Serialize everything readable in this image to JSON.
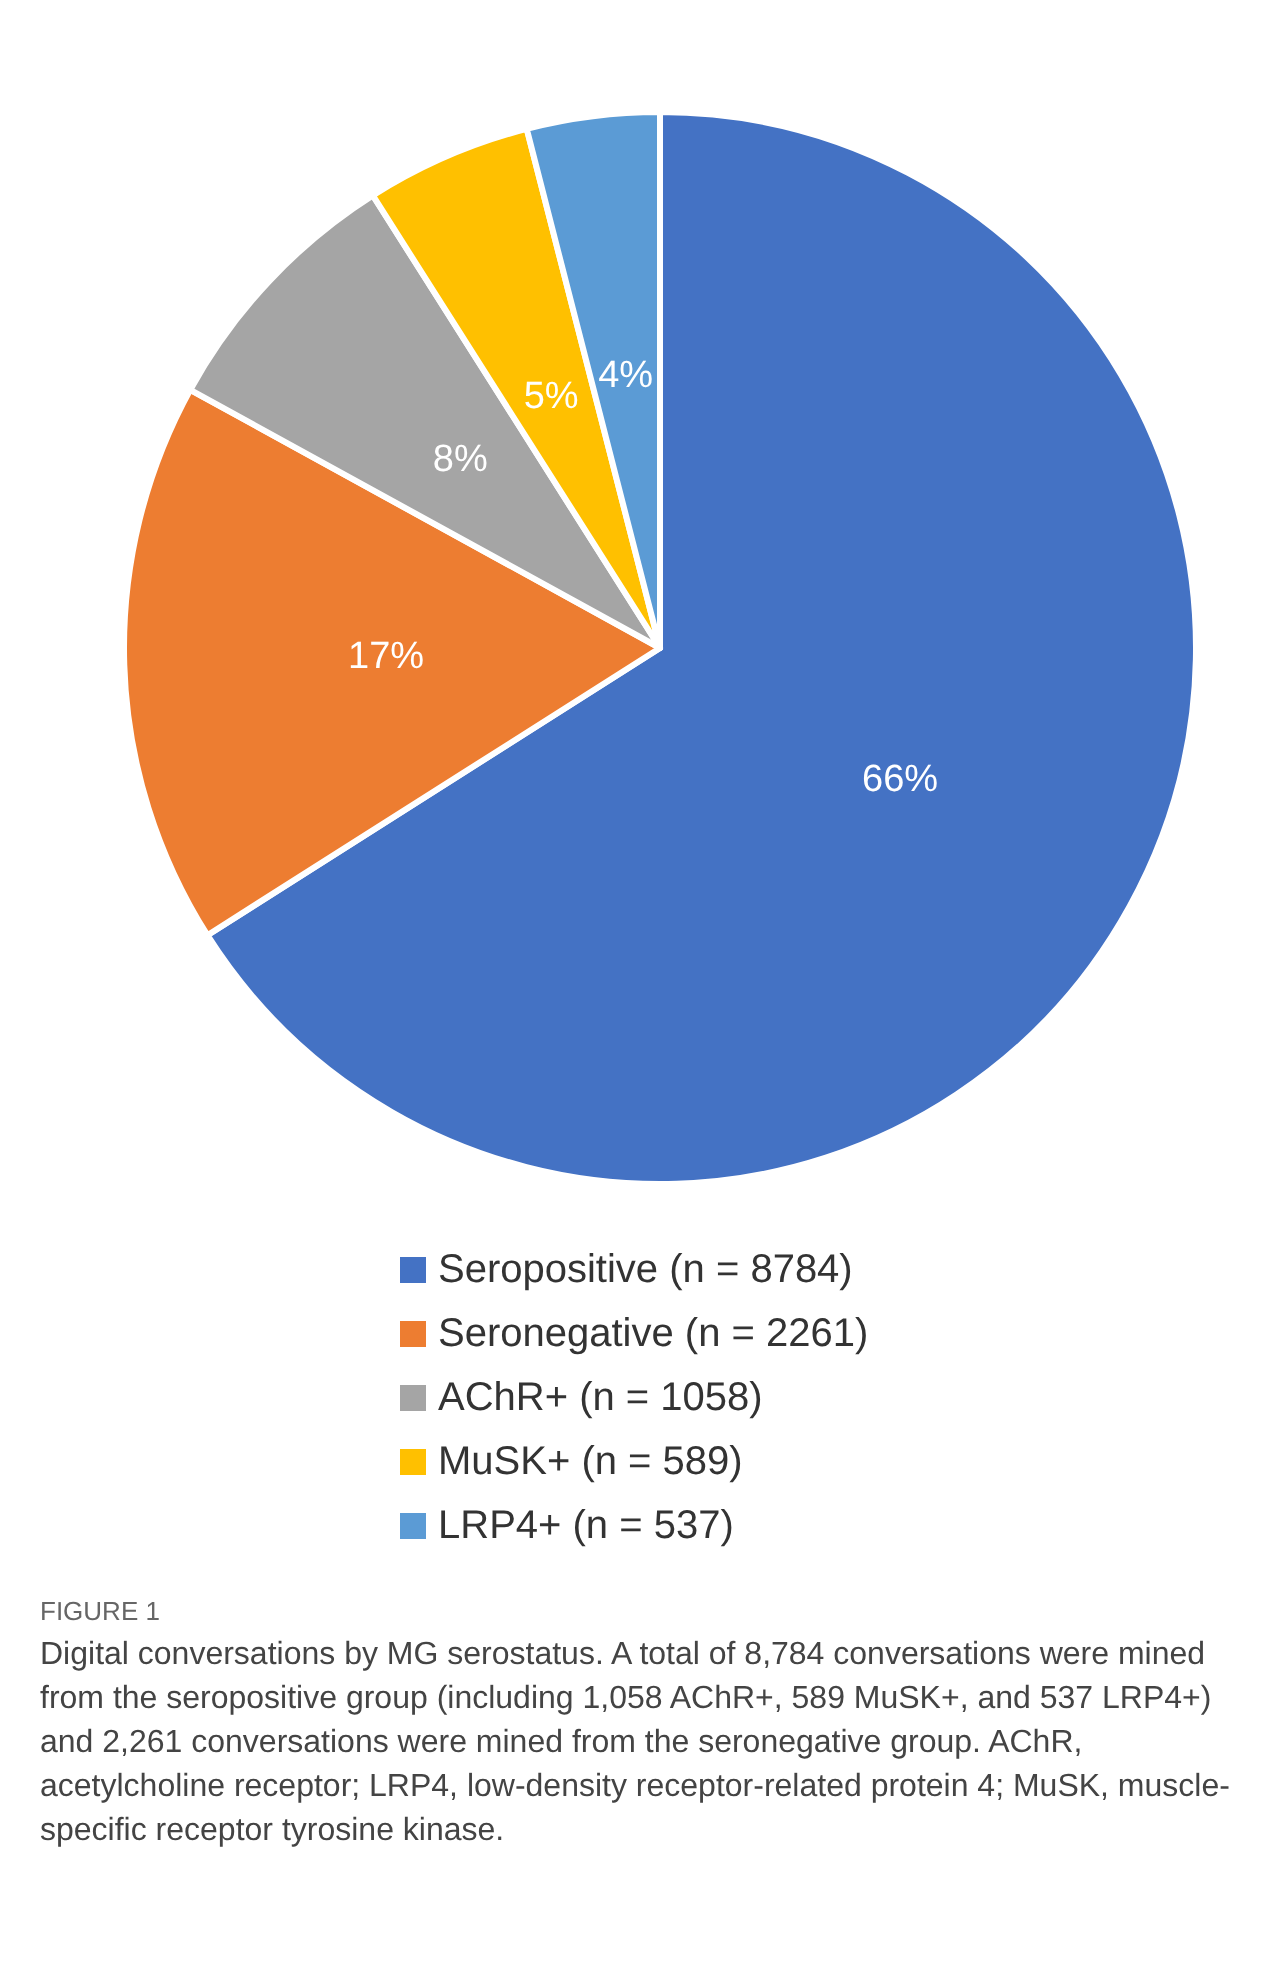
{
  "chart_data": {
    "type": "pie",
    "categories": [
      "Seropositive (n = 8784)",
      "Seronegative (n = 2261)",
      "AChR+ (n = 1058)",
      "MuSK+ (n = 589)",
      "LRP4+ (n = 537)"
    ],
    "values": [
      66,
      17,
      8,
      5,
      4
    ],
    "colors": [
      "#4472c4",
      "#ed7d31",
      "#a5a5a5",
      "#ffc000",
      "#5b9bd5"
    ],
    "value_labels": [
      "66%",
      "17%",
      "8%",
      "5%",
      "4%"
    ],
    "legend": "bottom",
    "annotations": [
      "FIGURE 1",
      "Digital conversations by MG serostatus. A total of 8,784 conversations were mined from the seropositive group (including 1,058 AChR+, 589 MuSK+, and 537 LRP4+) and 2,261 conversations were mined from the seronegative group. AChR, acetylcholine receptor; LRP4, low-density receptor-related protein 4; MuSK, muscle-specific receptor tyrosine kinase."
    ]
  }
}
